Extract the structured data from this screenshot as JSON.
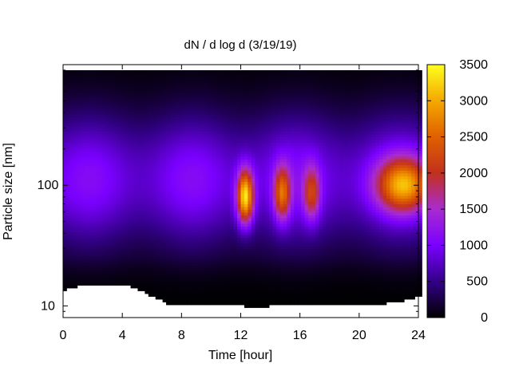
{
  "chart_data": {
    "type": "heatmap",
    "title": "dN / d log d (3/19/19)",
    "xlabel": "Time [hour]",
    "ylabel": "Particle size [nm]",
    "xlim": [
      0,
      24
    ],
    "ylim": [
      8,
      1000
    ],
    "y_scale": "log",
    "x_ticks": [
      0,
      4,
      8,
      12,
      16,
      20,
      24
    ],
    "x_tick_labels": [
      "0",
      "4",
      "8",
      "12",
      "16",
      "20",
      "24"
    ],
    "y_ticks": [
      10,
      100
    ],
    "y_tick_labels": [
      "10",
      "100"
    ],
    "colorbar": {
      "range": [
        0,
        3500
      ],
      "ticks": [
        0,
        500,
        1000,
        1500,
        2000,
        2500,
        3000,
        3500
      ],
      "tick_labels": [
        "0",
        "500",
        "1000",
        "1500",
        "2000",
        "2500",
        "3000",
        "3500"
      ],
      "colormap": [
        "#000000",
        "#330088",
        "#7a00ff",
        "#a92bd0",
        "#c2301e",
        "#e06000",
        "#f4a800",
        "#ffff20"
      ]
    },
    "background_level": 900,
    "peak_size_nm": 100,
    "events": [
      {
        "time": 12.3,
        "size_nm": 80,
        "peak": 3200
      },
      {
        "time": 14.8,
        "size_nm": 85,
        "peak": 2200
      },
      {
        "time": 16.8,
        "size_nm": 85,
        "peak": 1800
      },
      {
        "time": 23.0,
        "size_nm": 100,
        "peak": 2600
      }
    ],
    "min_size_cutoff": [
      {
        "time": 0,
        "size_nm": 13.5
      },
      {
        "time": 1,
        "size_nm": 14.5
      },
      {
        "time": 2,
        "size_nm": 15
      },
      {
        "time": 3,
        "size_nm": 15
      },
      {
        "time": 4,
        "size_nm": 15
      },
      {
        "time": 5,
        "size_nm": 14
      },
      {
        "time": 6,
        "size_nm": 12
      },
      {
        "time": 7,
        "size_nm": 10.5
      },
      {
        "time": 8,
        "size_nm": 10
      },
      {
        "time": 10,
        "size_nm": 10
      },
      {
        "time": 12,
        "size_nm": 10
      },
      {
        "time": 13,
        "size_nm": 9.5
      },
      {
        "time": 14,
        "size_nm": 10
      },
      {
        "time": 16,
        "size_nm": 10
      },
      {
        "time": 18,
        "size_nm": 10
      },
      {
        "time": 20,
        "size_nm": 10
      },
      {
        "time": 22,
        "size_nm": 10.5
      },
      {
        "time": 23,
        "size_nm": 11
      },
      {
        "time": 24,
        "size_nm": 12
      }
    ]
  }
}
